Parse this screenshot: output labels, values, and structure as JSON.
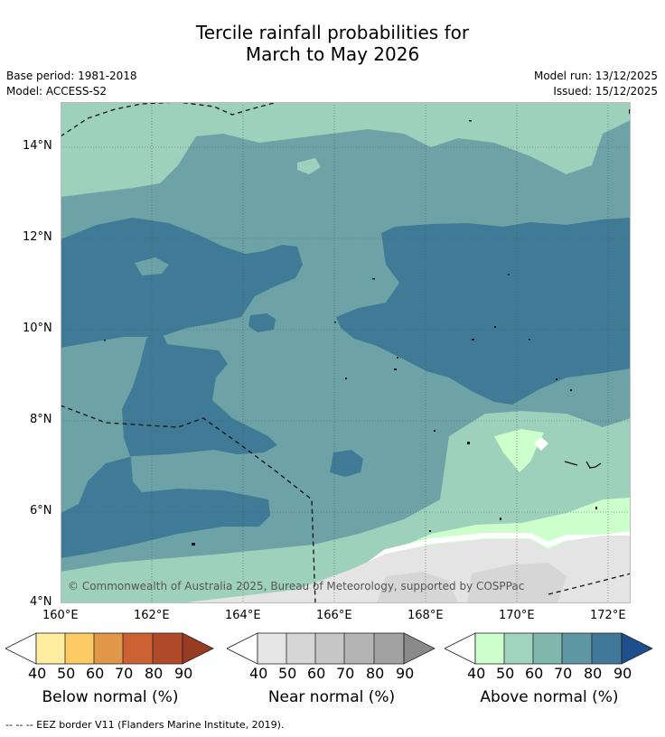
{
  "title_line1": "Tercile rainfall probabilities for",
  "title_line2": "March to May 2026",
  "meta": {
    "base_period": "Base period: 1981-2018",
    "model": "Model: ACCESS-S2",
    "model_run": "Model run: 13/12/2025",
    "issued": "Issued: 15/12/2025"
  },
  "map": {
    "lat_labels": [
      "14°N",
      "12°N",
      "10°N",
      "8°N",
      "6°N",
      "4°N"
    ],
    "lon_labels": [
      "160°E",
      "162°E",
      "164°E",
      "166°E",
      "168°E",
      "170°E",
      "172°E"
    ],
    "copyright": "© Commonwealth of Australia 2025, Bureau of Meteorology, supported by COSPPac"
  },
  "colorbars": [
    {
      "name": "Below normal (%)",
      "ticks": [
        "40",
        "50",
        "60",
        "70",
        "80",
        "90"
      ],
      "colors": [
        "#ffeea0",
        "#fdcb64",
        "#e09848",
        "#cc6133",
        "#b04a2a",
        "#993a22"
      ]
    },
    {
      "name": "Near normal (%)",
      "ticks": [
        "40",
        "50",
        "60",
        "70",
        "80",
        "90"
      ],
      "colors": [
        "#e6e6e6",
        "#d6d6d6",
        "#c6c6c6",
        "#b4b4b4",
        "#a2a2a2",
        "#8a8a8a"
      ]
    },
    {
      "name": "Above normal (%)",
      "ticks": [
        "40",
        "50",
        "60",
        "70",
        "80",
        "90"
      ],
      "colors": [
        "#ccffcc",
        "#a0d4be",
        "#80b8ad",
        "#5e96a3",
        "#3f7898",
        "#1e4f8c"
      ]
    }
  ],
  "footer": "--  --  -- EEZ border V11 (Flanders Marine Institute, 2019)."
}
